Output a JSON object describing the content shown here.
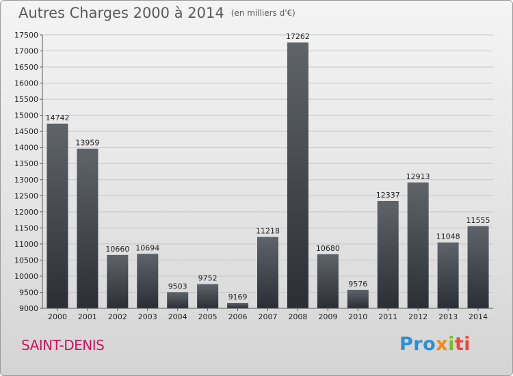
{
  "header": {
    "title": "Autres Charges 2000 à 2014",
    "unit": "(en milliers d'€)"
  },
  "footer": {
    "city": "SAINT-DENIS",
    "logo": {
      "p": "Pro",
      "x": "x",
      "i": "i",
      "ti": "ti"
    }
  },
  "colors": {
    "bar_top": "#5f646a",
    "bar_bottom": "#2b2f35",
    "grid": "#c7c7c7",
    "city": "#c2185b"
  },
  "chart_data": {
    "type": "bar",
    "title": "Autres Charges 2000 à 2014",
    "subtitle": "(en milliers d'€)",
    "categories": [
      "2000",
      "2001",
      "2002",
      "2003",
      "2004",
      "2005",
      "2006",
      "2007",
      "2008",
      "2009",
      "2010",
      "2011",
      "2012",
      "2013",
      "2014"
    ],
    "values": [
      14742,
      13959,
      10660,
      10694,
      9503,
      9752,
      9169,
      11218,
      17262,
      10680,
      9576,
      12337,
      12913,
      11048,
      11555
    ],
    "ylim": [
      9000,
      17500
    ],
    "yticks": [
      9000,
      9500,
      10000,
      10500,
      11000,
      11500,
      12000,
      12500,
      13000,
      13500,
      14000,
      14500,
      15000,
      15500,
      16000,
      16500,
      17000,
      17500
    ],
    "grid": true,
    "xlabel": "",
    "ylabel": ""
  }
}
